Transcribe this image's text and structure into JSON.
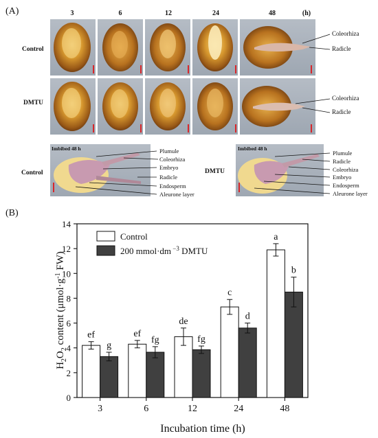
{
  "panel_a": {
    "label": "(A)",
    "time_labels": [
      "3",
      "6",
      "12",
      "24",
      "48"
    ],
    "time_unit": "(h)",
    "row_labels": [
      "Control",
      "DMTU"
    ],
    "row_annotations": {
      "control": [
        "Coleorhiza",
        "Radicle"
      ],
      "dmtu": [
        "Coleorhiza",
        "Radicle"
      ]
    },
    "sections": [
      {
        "label": "Control",
        "tag": "Imbibed 48 h",
        "parts": [
          "Plumule",
          "Coleorhiza",
          "Embryo",
          "Radicle",
          "Endosperm",
          "Aleurone layer"
        ]
      },
      {
        "label": "DMTU",
        "tag": "Imbibed 48 h",
        "parts": [
          "Plumule",
          "Radicle",
          "Coleorhiza",
          "Embryo",
          "Endosperm",
          "Aleurone layer"
        ]
      }
    ],
    "colors": {
      "kernel": "#a86f1f",
      "kernel_highlight": "#e7b65c",
      "kernel_dark": "#5c2e0d",
      "background": "#aeb6c0",
      "scale_bar": "#d8262a"
    }
  },
  "panel_b": {
    "label": "(B)",
    "chart_data": {
      "type": "bar",
      "categories": [
        "3",
        "6",
        "12",
        "24",
        "48"
      ],
      "xlabel": "Incubation time (h)",
      "ylabel_parts": [
        "H",
        "2",
        "O",
        "2",
        " content (μmol·g",
        "-1",
        " FW)"
      ],
      "ylim": [
        0,
        14
      ],
      "yticks": [
        0,
        2,
        4,
        6,
        8,
        10,
        12,
        14
      ],
      "legend_position": "top-left",
      "series": [
        {
          "name": "Control",
          "color": "#ffffff",
          "values": [
            4.2,
            4.3,
            4.9,
            7.3,
            11.9
          ],
          "errors": [
            0.3,
            0.3,
            0.7,
            0.6,
            0.5
          ],
          "letters": [
            "ef",
            "ef",
            "de",
            "c",
            "a"
          ]
        },
        {
          "name_parts": [
            "200 mmol·dm",
            " −3",
            " DMTU"
          ],
          "color": "#404040",
          "values": [
            3.3,
            3.65,
            3.85,
            5.6,
            8.5
          ],
          "errors": [
            0.35,
            0.45,
            0.3,
            0.4,
            1.2
          ],
          "letters": [
            "g",
            "fg",
            "fg",
            "d",
            "b"
          ]
        }
      ]
    }
  }
}
